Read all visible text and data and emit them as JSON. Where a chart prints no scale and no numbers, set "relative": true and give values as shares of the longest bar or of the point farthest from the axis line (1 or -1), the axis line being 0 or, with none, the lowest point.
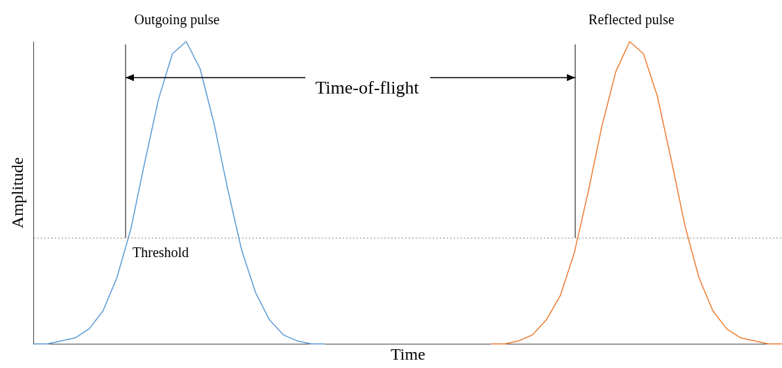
{
  "chart_data": {
    "type": "line",
    "relative": true,
    "xlabel": "Time",
    "ylabel": "Amplitude",
    "marker": "none",
    "categories": [
      null,
      null,
      null,
      null,
      null,
      null,
      null,
      null,
      null,
      null,
      null,
      null,
      null,
      null,
      null,
      null,
      null,
      null,
      null,
      null,
      null,
      null,
      null,
      null,
      null,
      null,
      null,
      null,
      null,
      null,
      null,
      null,
      null,
      null,
      null,
      null,
      null,
      null,
      null,
      null,
      null,
      null,
      null,
      null,
      null,
      null,
      null,
      null,
      null,
      null,
      null,
      null,
      null,
      null,
      null
    ],
    "series": [
      {
        "color": "#5b9bd5",
        "values": [
          0,
          0,
          0.01,
          0.02,
          0.05,
          0.11,
          0.22,
          0.38,
          0.6,
          0.81,
          0.96,
          1,
          0.91,
          0.73,
          0.51,
          0.31,
          0.17,
          0.08,
          0.03,
          0.01,
          0,
          0,
          null,
          null,
          null,
          null,
          null,
          null,
          null,
          null,
          null,
          null,
          null,
          null,
          null,
          null,
          null,
          null,
          null,
          null,
          null,
          null,
          null,
          null,
          null,
          null,
          null,
          null,
          null,
          null,
          null,
          null,
          null,
          null,
          null
        ]
      },
      {
        "color": "#ed7d31",
        "values": [
          null,
          null,
          null,
          null,
          null,
          null,
          null,
          null,
          null,
          null,
          null,
          null,
          null,
          null,
          null,
          null,
          null,
          null,
          null,
          null,
          null,
          null,
          null,
          null,
          null,
          null,
          null,
          null,
          null,
          null,
          null,
          null,
          null,
          0,
          0,
          0.01,
          0.03,
          0.08,
          0.16,
          0.3,
          0.5,
          0.72,
          0.9,
          1,
          0.96,
          0.82,
          0.61,
          0.39,
          0.22,
          0.11,
          0.05,
          0.02,
          0.01,
          0,
          0
        ]
      }
    ],
    "ref_lines": [
      {
        "axis": "y",
        "value": 0.35,
        "label": "Threshold",
        "color": "#7f7f7f",
        "line_style": "dotted"
      }
    ],
    "annotations": [
      "Outgoing pulse",
      "Reflected pulse",
      "Time-of-flight"
    ]
  }
}
